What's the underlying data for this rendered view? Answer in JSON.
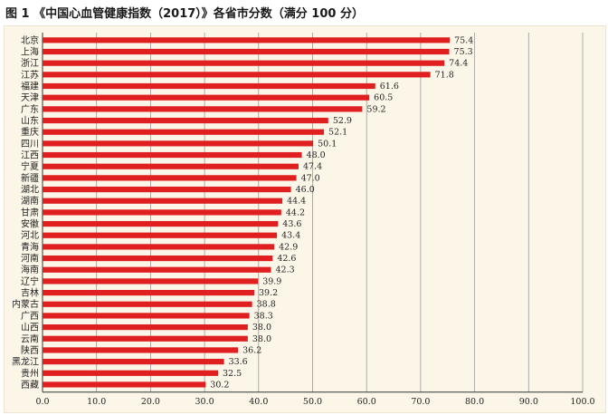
{
  "title": "图 1 《中国心血管健康指数（2017）》各省市分数（满分 100 分）",
  "colors": {
    "bar": "#e02020",
    "grid": "#9a9a9a",
    "axis": "#333333"
  },
  "chart_data": {
    "type": "bar",
    "orientation": "horizontal",
    "title": "图 1 《中国心血管健康指数（2017）》各省市分数（满分 100 分）",
    "xlabel": "",
    "ylabel": "",
    "xlim": [
      0,
      100
    ],
    "grid": true,
    "ticks": [
      "0.0",
      "10.0",
      "20.0",
      "30.0",
      "40.0",
      "50.0",
      "60.0",
      "70.0",
      "80.0",
      "90.0",
      "100.0"
    ],
    "categories": [
      "北京",
      "上海",
      "浙江",
      "江苏",
      "福建",
      "天津",
      "广东",
      "山东",
      "重庆",
      "四川",
      "江西",
      "宁夏",
      "新疆",
      "湖北",
      "湖南",
      "甘肃",
      "安徽",
      "河北",
      "青海",
      "河南",
      "海南",
      "辽宁",
      "吉林",
      "内蒙古",
      "广西",
      "山西",
      "云南",
      "陕西",
      "黑龙江",
      "贵州",
      "西藏"
    ],
    "values": [
      75.4,
      75.3,
      74.4,
      71.8,
      61.6,
      60.5,
      59.2,
      52.9,
      52.1,
      50.1,
      48.0,
      47.4,
      47.0,
      46.0,
      44.4,
      44.2,
      43.6,
      43.4,
      42.9,
      42.6,
      42.3,
      39.9,
      39.2,
      38.8,
      38.3,
      38.0,
      38.0,
      36.2,
      33.6,
      32.5,
      30.2
    ],
    "value_labels": [
      "75.4",
      "75.3",
      "74.4",
      "71.8",
      "61.6",
      "60.5",
      "59.2",
      "52.9",
      "52.1",
      "50.1",
      "48.0",
      "47.4",
      "47.0",
      "46.0",
      "44.4",
      "44.2",
      "43.6",
      "43.4",
      "42.9",
      "42.6",
      "42.3",
      "39.9",
      "39.2",
      "38.8",
      "38.3",
      "38.0",
      "38.0",
      "36.2",
      "33.6",
      "32.5",
      "30.2"
    ]
  }
}
